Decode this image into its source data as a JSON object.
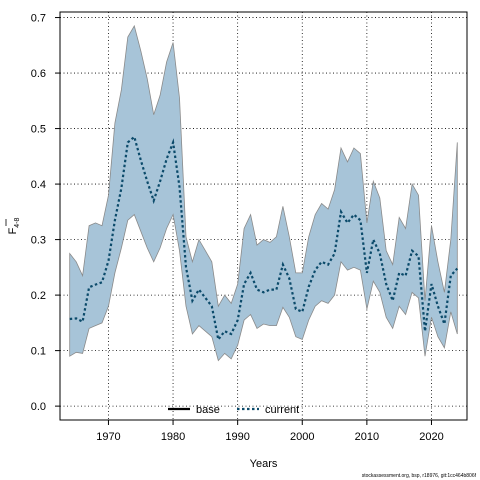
{
  "chart_data": {
    "type": "line",
    "xlabel": "Years",
    "ylabel_main": "F",
    "ylabel_sub": "4-8",
    "xlim": [
      1962.5,
      2025.5
    ],
    "ylim": [
      -0.025,
      0.71
    ],
    "x_ticks": [
      1970,
      1980,
      1990,
      2000,
      2010,
      2020
    ],
    "y_ticks": [
      0.0,
      0.1,
      0.2,
      0.3,
      0.4,
      0.5,
      0.6,
      0.7
    ],
    "x_tick_labels": [
      "1970",
      "1980",
      "1990",
      "2000",
      "2010",
      "2020"
    ],
    "y_tick_labels": [
      "0.0",
      "0.1",
      "0.2",
      "0.3",
      "0.4",
      "0.5",
      "0.6",
      "0.7"
    ],
    "grid": true,
    "legend_position": "bottom-center",
    "colors": {
      "band_fill": "#a7c4d8",
      "band_stroke": "#8a8a8a",
      "base_line": "#000000",
      "current_line": "#0b4a6a",
      "grid": "#000000"
    },
    "x": [
      1964,
      1965,
      1966,
      1967,
      1968,
      1969,
      1970,
      1971,
      1972,
      1973,
      1974,
      1975,
      1976,
      1977,
      1978,
      1979,
      1980,
      1981,
      1982,
      1983,
      1984,
      1985,
      1986,
      1987,
      1988,
      1989,
      1990,
      1991,
      1992,
      1993,
      1994,
      1995,
      1996,
      1997,
      1998,
      1999,
      2000,
      2001,
      2002,
      2003,
      2004,
      2005,
      2006,
      2007,
      2008,
      2009,
      2010,
      2011,
      2012,
      2013,
      2014,
      2015,
      2016,
      2017,
      2018,
      2019,
      2020,
      2021,
      2022,
      2023,
      2024
    ],
    "series": [
      {
        "name": "current",
        "upper": [
          0.275,
          0.26,
          0.235,
          0.325,
          0.33,
          0.325,
          0.38,
          0.51,
          0.57,
          0.665,
          0.685,
          0.64,
          0.59,
          0.525,
          0.56,
          0.62,
          0.655,
          0.555,
          0.305,
          0.26,
          0.3,
          0.28,
          0.26,
          0.18,
          0.2,
          0.185,
          0.22,
          0.32,
          0.345,
          0.29,
          0.3,
          0.295,
          0.305,
          0.36,
          0.305,
          0.24,
          0.24,
          0.305,
          0.345,
          0.365,
          0.355,
          0.39,
          0.465,
          0.44,
          0.465,
          0.455,
          0.33,
          0.405,
          0.375,
          0.28,
          0.255,
          0.34,
          0.32,
          0.4,
          0.38,
          0.19,
          0.325,
          0.26,
          0.205,
          0.3,
          0.475
        ],
        "values": [
          0.157,
          0.158,
          0.152,
          0.214,
          0.219,
          0.223,
          0.262,
          0.335,
          0.393,
          0.475,
          0.485,
          0.443,
          0.405,
          0.37,
          0.405,
          0.445,
          0.475,
          0.395,
          0.25,
          0.19,
          0.21,
          0.195,
          0.18,
          0.12,
          0.135,
          0.13,
          0.155,
          0.22,
          0.24,
          0.21,
          0.205,
          0.21,
          0.21,
          0.255,
          0.23,
          0.175,
          0.17,
          0.215,
          0.245,
          0.26,
          0.255,
          0.275,
          0.35,
          0.33,
          0.345,
          0.335,
          0.24,
          0.3,
          0.275,
          0.22,
          0.19,
          0.24,
          0.235,
          0.28,
          0.27,
          0.135,
          0.22,
          0.18,
          0.148,
          0.235,
          0.248
        ],
        "lower": [
          0.09,
          0.097,
          0.095,
          0.14,
          0.145,
          0.15,
          0.18,
          0.24,
          0.285,
          0.335,
          0.345,
          0.315,
          0.285,
          0.26,
          0.285,
          0.32,
          0.345,
          0.28,
          0.18,
          0.13,
          0.145,
          0.135,
          0.125,
          0.082,
          0.095,
          0.085,
          0.11,
          0.155,
          0.165,
          0.14,
          0.148,
          0.145,
          0.145,
          0.178,
          0.16,
          0.125,
          0.12,
          0.155,
          0.18,
          0.19,
          0.185,
          0.2,
          0.26,
          0.245,
          0.25,
          0.245,
          0.175,
          0.225,
          0.205,
          0.16,
          0.14,
          0.18,
          0.165,
          0.205,
          0.195,
          0.09,
          0.16,
          0.125,
          0.105,
          0.17,
          0.13
        ]
      }
    ],
    "legend": [
      {
        "label": "base",
        "style": "solid",
        "color": "#000000"
      },
      {
        "label": "current",
        "style": "dashed",
        "color": "#0b4a6a"
      }
    ]
  },
  "footer": "stockassessment.org, bsp, r18976, git:1cc464b806f"
}
